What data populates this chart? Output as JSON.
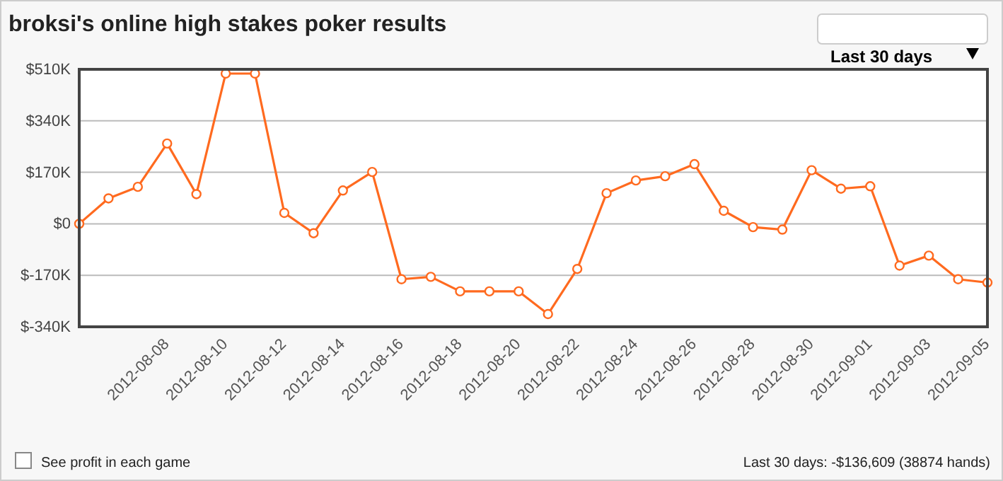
{
  "chart_data": {
    "type": "line",
    "title": "broksi's online high stakes poker results",
    "x": [
      "2012-08-06",
      "2012-08-07",
      "2012-08-08",
      "2012-08-09",
      "2012-08-10",
      "2012-08-11",
      "2012-08-12",
      "2012-08-13",
      "2012-08-14",
      "2012-08-15",
      "2012-08-16",
      "2012-08-17",
      "2012-08-18",
      "2012-08-19",
      "2012-08-20",
      "2012-08-21",
      "2012-08-22",
      "2012-08-23",
      "2012-08-24",
      "2012-08-25",
      "2012-08-26",
      "2012-08-27",
      "2012-08-28",
      "2012-08-29",
      "2012-08-30",
      "2012-08-31",
      "2012-09-01",
      "2012-09-02",
      "2012-09-03",
      "2012-09-04",
      "2012-09-05",
      "2012-09-06"
    ],
    "series": [
      {
        "color": "#ff6a1f",
        "values": [
          0,
          84,
          122,
          265,
          98,
          496,
          496,
          36,
          -31,
          110,
          171,
          -183,
          -175,
          -223,
          -223,
          -223,
          -298,
          -149,
          101,
          143,
          157,
          197,
          43,
          -11,
          -19,
          177,
          116,
          124,
          -138,
          -105,
          -183,
          -194
        ]
      }
    ],
    "xlim": [
      "2012-08-06",
      "2012-09-06"
    ],
    "xticks": [
      {
        "value": "2012-08-08",
        "label": "2012-08-08"
      },
      {
        "value": "2012-08-10",
        "label": "2012-08-10"
      },
      {
        "value": "2012-08-12",
        "label": "2012-08-12"
      },
      {
        "value": "2012-08-14",
        "label": "2012-08-14"
      },
      {
        "value": "2012-08-16",
        "label": "2012-08-16"
      },
      {
        "value": "2012-08-18",
        "label": "2012-08-18"
      },
      {
        "value": "2012-08-20",
        "label": "2012-08-20"
      },
      {
        "value": "2012-08-22",
        "label": "2012-08-22"
      },
      {
        "value": "2012-08-24",
        "label": "2012-08-24"
      },
      {
        "value": "2012-08-26",
        "label": "2012-08-26"
      },
      {
        "value": "2012-08-28",
        "label": "2012-08-28"
      },
      {
        "value": "2012-08-30",
        "label": "2012-08-30"
      },
      {
        "value": "2012-09-01",
        "label": "2012-09-01"
      },
      {
        "value": "2012-09-03",
        "label": "2012-09-03"
      },
      {
        "value": "2012-09-05",
        "label": "2012-09-05"
      }
    ],
    "ylim": [
      -340,
      510
    ],
    "yticks": [
      {
        "value": -340,
        "label": "$-340K"
      },
      {
        "value": -170,
        "label": "$-170K"
      },
      {
        "value": 0,
        "label": "$0"
      },
      {
        "value": 170,
        "label": "$170K"
      },
      {
        "value": 340,
        "label": "$340K"
      },
      {
        "value": 510,
        "label": "$510K"
      }
    ],
    "grid": "y",
    "marker": "circle",
    "line_style": "solid",
    "annotations": [
      "Last 30 days",
      "See profit in each game",
      "Last 30 days: -$136,609 (38874 hands)"
    ]
  }
}
